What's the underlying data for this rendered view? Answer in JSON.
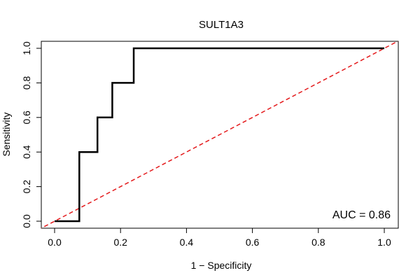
{
  "chart_data": {
    "type": "line",
    "title": "SULT1A3",
    "xlabel": "1 − Specificity",
    "ylabel": "Sensitivity",
    "xlim": [
      0,
      1
    ],
    "ylim": [
      0,
      1
    ],
    "x_ticks": [
      "0.0",
      "0.2",
      "0.4",
      "0.6",
      "0.8",
      "1.0"
    ],
    "y_ticks": [
      "0.0",
      "0.2",
      "0.4",
      "0.6",
      "0.8",
      "1.0"
    ],
    "grid": false,
    "annotation": "AUC = 0.86",
    "series": [
      {
        "color": "#000000",
        "style": "solid",
        "x": [
          0.0,
          0.075,
          0.075,
          0.13,
          0.13,
          0.175,
          0.175,
          0.24,
          0.24,
          1.0
        ],
        "y": [
          0.0,
          0.0,
          0.4,
          0.4,
          0.6,
          0.6,
          0.8,
          0.8,
          1.0,
          1.0
        ]
      },
      {
        "color": "#e41a1c",
        "style": "dashed",
        "x": [
          0.0,
          1.0
        ],
        "y": [
          0.0,
          1.0
        ]
      }
    ]
  }
}
